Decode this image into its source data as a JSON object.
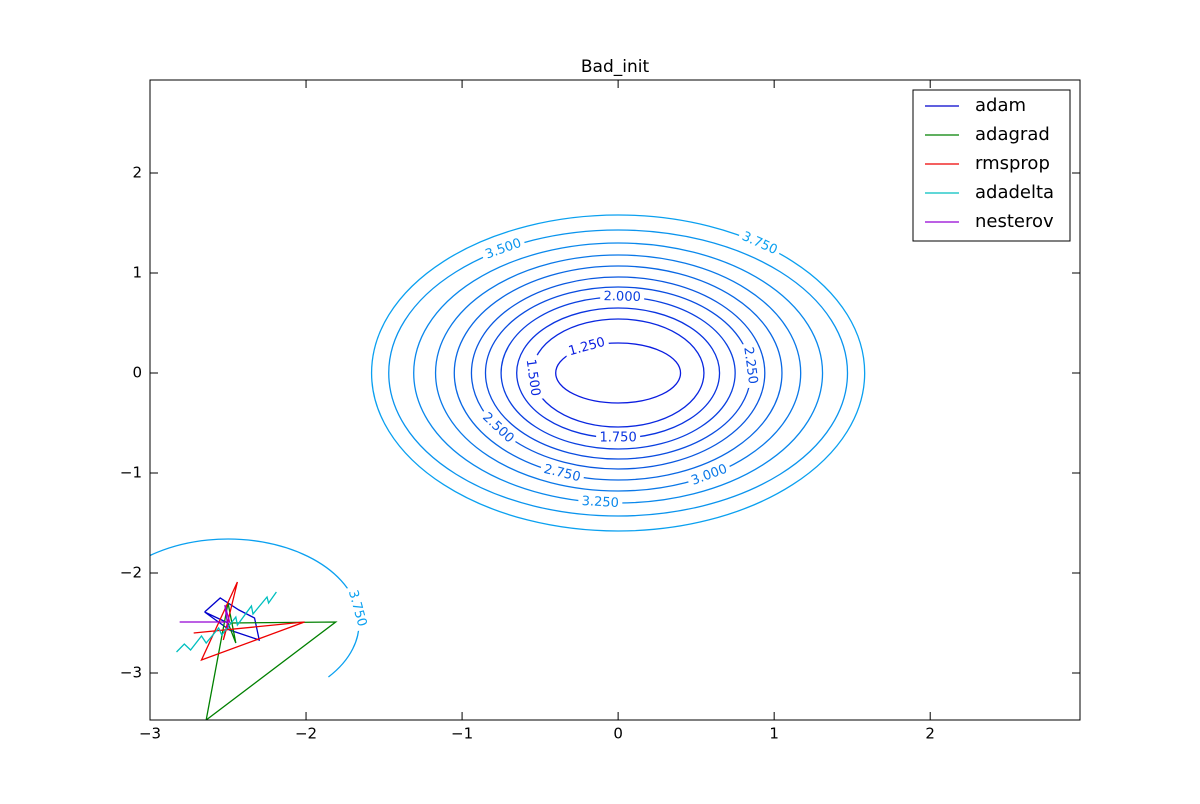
{
  "chart_data": {
    "type": "contour",
    "title": "Bad_init",
    "xlim": [
      -3,
      2.96
    ],
    "ylim": [
      -3.47,
      2.93
    ],
    "xticks": [
      {
        "value": -3,
        "label": "−3"
      },
      {
        "value": -2,
        "label": "−2"
      },
      {
        "value": -1,
        "label": "−1"
      },
      0,
      1,
      2
    ],
    "yticks": [
      {
        "value": -3,
        "label": "−3"
      },
      {
        "value": -2,
        "label": "−2"
      },
      {
        "value": -1,
        "label": "−1"
      },
      0,
      1,
      2
    ],
    "legend": "upper right",
    "contours": [
      {
        "level": 3.75,
        "label": "3.750",
        "center": [
          0,
          0
        ],
        "rx": 1.58,
        "ry": 1.58,
        "color": "#0aa0f0"
      },
      {
        "level": 3.5,
        "label": "3.500",
        "center": [
          0,
          0
        ],
        "rx": 1.47,
        "ry": 1.43,
        "color": "#0a94ee"
      },
      {
        "level": 3.25,
        "label": "3.250",
        "center": [
          0,
          0
        ],
        "rx": 1.31,
        "ry": 1.3,
        "color": "#0a88ec"
      },
      {
        "level": 3.0,
        "label": "3.000",
        "center": [
          0,
          0
        ],
        "rx": 1.17,
        "ry": 1.18,
        "color": "#0a78e8"
      },
      {
        "level": 2.75,
        "label": "2.750",
        "center": [
          0,
          0
        ],
        "rx": 1.05,
        "ry": 1.07,
        "color": "#0a68e4"
      },
      {
        "level": 2.5,
        "label": "2.500",
        "center": [
          0,
          0
        ],
        "rx": 0.94,
        "ry": 0.96,
        "color": "#0a58e0"
      },
      {
        "level": 2.25,
        "label": "2.250",
        "center": [
          0,
          0
        ],
        "rx": 0.85,
        "ry": 0.86,
        "color": "#0a4ce0"
      },
      {
        "level": 2.0,
        "label": "2.000",
        "center": [
          0,
          0
        ],
        "rx": 0.75,
        "ry": 0.76,
        "color": "#0a40e0"
      },
      {
        "level": 1.75,
        "label": "1.750",
        "center": [
          0,
          0
        ],
        "rx": 0.65,
        "ry": 0.65,
        "color": "#0a34e0"
      },
      {
        "level": 1.5,
        "label": "1.500",
        "center": [
          0,
          0
        ],
        "rx": 0.55,
        "ry": 0.54,
        "color": "#0a28e0"
      },
      {
        "level": 1.25,
        "label": "1.250",
        "center": [
          0,
          0
        ],
        "rx": 0.4,
        "ry": 0.3,
        "color": "#0a1ce0"
      },
      {
        "level": 3.75,
        "label": "3.750",
        "center": [
          -2.5,
          -2.5
        ],
        "rx": 0.84,
        "ry": 0.84,
        "color": "#0aa0f0"
      }
    ],
    "series": [
      {
        "name": "adam",
        "color": "#0000cc",
        "x": [
          -2.65,
          -2.55,
          -2.43,
          -2.33,
          -2.3,
          -2.49,
          -2.65,
          -2.5
        ],
        "y": [
          -2.39,
          -2.25,
          -2.37,
          -2.45,
          -2.67,
          -2.57,
          -2.39,
          -2.5
        ]
      },
      {
        "name": "adagrad",
        "color": "#008000",
        "x": [
          -2.49,
          -1.81,
          -2.64,
          -2.5,
          -2.45,
          -2.5
        ],
        "y": [
          -2.5,
          -2.49,
          -3.47,
          -2.3,
          -2.7,
          -2.5
        ]
      },
      {
        "name": "rmsprop",
        "color": "#ee0000",
        "x": [
          -2.72,
          -2.01,
          -2.67,
          -2.44,
          -2.53,
          -2.5
        ],
        "y": [
          -2.6,
          -2.49,
          -2.87,
          -2.09,
          -2.67,
          -2.5
        ]
      },
      {
        "name": "adadelta",
        "color": "#00bfbf",
        "x": [
          -2.83,
          -2.78,
          -2.74,
          -2.67,
          -2.64,
          -2.56,
          -2.54,
          -2.45,
          -2.44,
          -2.35,
          -2.34,
          -2.25,
          -2.24,
          -2.19
        ],
        "y": [
          -2.79,
          -2.71,
          -2.77,
          -2.63,
          -2.7,
          -2.55,
          -2.62,
          -2.44,
          -2.52,
          -2.33,
          -2.41,
          -2.24,
          -2.3,
          -2.19
        ]
      },
      {
        "name": "nesterov",
        "color": "#9400d3",
        "x": [
          -2.81,
          -2.49,
          -2.52,
          -2.5
        ],
        "y": [
          -2.49,
          -2.49,
          -2.32,
          -2.55
        ]
      }
    ]
  }
}
